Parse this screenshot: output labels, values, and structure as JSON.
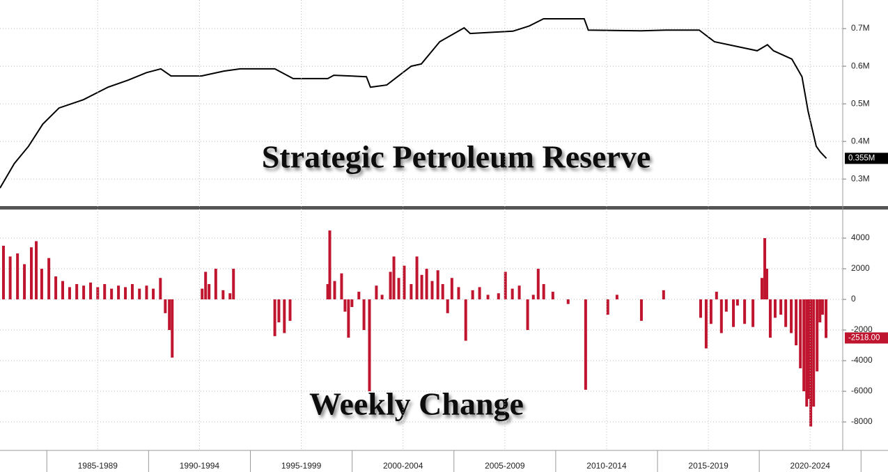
{
  "chart_data": [
    {
      "type": "line",
      "title": "Strategic Petroleum Reserve",
      "color": "#000000",
      "x": [
        1982.7,
        1983.4,
        1984.1,
        1984.8,
        1985.6,
        1986.8,
        1988.0,
        1989.0,
        1989.9,
        1990.6,
        1991.1,
        1992.6,
        1993.7,
        1994.5,
        1996.2,
        1997.1,
        1998.8,
        1999.1,
        2000.7,
        2000.9,
        2001.7,
        2002.9,
        2003.4,
        2004.3,
        2005.5,
        2005.8,
        2007.9,
        2008.7,
        2009.4,
        2011.4,
        2011.6,
        2014.2,
        2015.4,
        2017.05,
        2017.8,
        2019.9,
        2020.4,
        2020.7,
        2021.6,
        2022.1,
        2022.4,
        2022.8,
        2023.0,
        2023.3
      ],
      "values": [
        0.276,
        0.341,
        0.387,
        0.446,
        0.489,
        0.511,
        0.544,
        0.563,
        0.583,
        0.593,
        0.574,
        0.574,
        0.587,
        0.593,
        0.593,
        0.567,
        0.567,
        0.576,
        0.572,
        0.544,
        0.55,
        0.6,
        0.606,
        0.665,
        0.702,
        0.687,
        0.693,
        0.707,
        0.726,
        0.726,
        0.696,
        0.694,
        0.696,
        0.696,
        0.665,
        0.641,
        0.657,
        0.641,
        0.619,
        0.572,
        0.48,
        0.387,
        0.372,
        0.355
      ],
      "last_value_label": "0.355M",
      "xlim": [
        1982.7,
        2024.1
      ],
      "ylim": [
        0.23,
        0.776
      ],
      "yticks": [
        {
          "value": 0.3,
          "label": "0.3M"
        },
        {
          "value": 0.4,
          "label": "0.4M"
        },
        {
          "value": 0.5,
          "label": "0.5M"
        },
        {
          "value": 0.6,
          "label": "0.6M"
        },
        {
          "value": 0.7,
          "label": "0.7M"
        }
      ],
      "grid": true
    },
    {
      "type": "bar",
      "title": "Weekly Change",
      "color": "#c0152f",
      "x": [
        1982.87,
        1983.2,
        1983.56,
        1983.9,
        1984.24,
        1984.48,
        1984.75,
        1985.1,
        1985.44,
        1985.78,
        1986.12,
        1986.47,
        1986.81,
        1987.15,
        1987.5,
        1987.84,
        1988.18,
        1988.52,
        1988.86,
        1989.2,
        1989.55,
        1989.9,
        1990.23,
        1990.58,
        1990.82,
        1991.02,
        1991.16,
        1992.63,
        1992.8,
        1992.97,
        1993.3,
        1993.66,
        1994.0,
        1994.17,
        1996.2,
        1996.4,
        1996.67,
        1996.95,
        1998.8,
        1998.9,
        1999.14,
        1999.48,
        1999.65,
        1999.82,
        1999.99,
        2000.33,
        2000.58,
        2000.85,
        2001.19,
        2001.47,
        2001.88,
        2002.05,
        2002.29,
        2002.56,
        2002.9,
        2003.18,
        2003.42,
        2003.66,
        2003.93,
        2004.21,
        2004.45,
        2004.69,
        2004.9,
        2005.23,
        2005.58,
        2005.92,
        2006.26,
        2006.67,
        2007.19,
        2007.53,
        2007.87,
        2008.21,
        2008.62,
        2008.9,
        2009.14,
        2009.41,
        2009.86,
        2010.61,
        2011.47,
        2012.56,
        2013.01,
        2014.21,
        2015.3,
        2017.12,
        2017.39,
        2017.63,
        2017.9,
        2018.14,
        2018.38,
        2018.73,
        2018.93,
        2019.28,
        2019.69,
        2020.13,
        2020.27,
        2020.37,
        2020.54,
        2020.78,
        2021.06,
        2021.3,
        2021.57,
        2021.81,
        2022.02,
        2022.19,
        2022.33,
        2022.43,
        2022.53,
        2022.67,
        2022.84,
        2022.98,
        2023.11,
        2023.28
      ],
      "values": [
        3500,
        2800,
        3000,
        2300,
        3400,
        3800,
        2000,
        2700,
        1500,
        1200,
        800,
        1000,
        900,
        1100,
        800,
        1000,
        700,
        900,
        800,
        1000,
        700,
        900,
        700,
        1400,
        -900,
        -2000,
        -3800,
        700,
        1800,
        1000,
        2000,
        600,
        400,
        2000,
        -2400,
        -1500,
        -2200,
        -1400,
        1000,
        4500,
        1200,
        1700,
        -800,
        -2500,
        -500,
        500,
        -2000,
        -6000,
        900,
        300,
        1800,
        2800,
        1400,
        2200,
        1000,
        2800,
        1600,
        2000,
        1200,
        1900,
        1000,
        -900,
        1400,
        800,
        -2700,
        600,
        800,
        300,
        400,
        1800,
        700,
        900,
        -2000,
        300,
        2000,
        1000,
        500,
        -300,
        -5900,
        -1000,
        300,
        -1400,
        600,
        -1200,
        -3200,
        -1600,
        500,
        -2200,
        -800,
        -1800,
        -400,
        -1600,
        -1800,
        1400,
        4000,
        2000,
        -2500,
        -1200,
        -1000,
        -1800,
        -2200,
        -3000,
        -4500,
        -6000,
        -7000,
        -6500,
        -8300,
        -7000,
        -4700,
        -1500,
        -1000,
        -2518
      ],
      "last_value_label": "-2518.00",
      "xlim": [
        1982.7,
        2024.1
      ],
      "ylim": [
        -9770,
        5820
      ],
      "yticks": [
        -8000,
        -6000,
        -4000,
        -2000,
        0,
        2000,
        4000
      ],
      "xticks": [
        {
          "value": 1987.5,
          "label": "1985-1989"
        },
        {
          "value": 1992.5,
          "label": "1990-1994"
        },
        {
          "value": 1997.5,
          "label": "1995-1999"
        },
        {
          "value": 2002.5,
          "label": "2000-2004"
        },
        {
          "value": 2007.5,
          "label": "2005-2009"
        },
        {
          "value": 2012.5,
          "label": "2010-2014"
        },
        {
          "value": 2017.5,
          "label": "2015-2019"
        },
        {
          "value": 2022.5,
          "label": "2020-2024"
        }
      ],
      "grid": true
    }
  ]
}
